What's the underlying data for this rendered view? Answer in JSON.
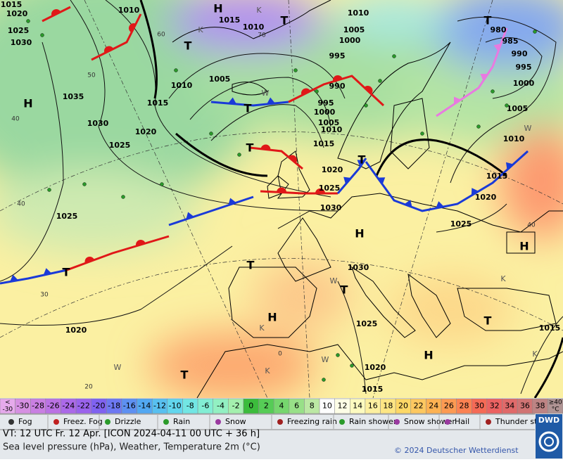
{
  "map": {
    "isobar_labels": [
      "1015",
      "1020",
      "1025",
      "1030",
      "1010",
      "1015",
      "1010",
      "1010",
      "1005",
      "1000",
      "995",
      "990",
      "1005",
      "1010",
      "1015",
      "1035",
      "1030",
      "1020",
      "1025",
      "995",
      "1000",
      "1005",
      "1010",
      "1015",
      "1020",
      "1025",
      "1030",
      "1025",
      "980",
      "985",
      "990",
      "995",
      "1000",
      "1005",
      "1010",
      "1015",
      "1020",
      "1025",
      "1030",
      "1025",
      "1020",
      "1015",
      "1015",
      "1020"
    ],
    "pressure_centers": [
      "H",
      "H",
      "H",
      "H",
      "H",
      "H",
      "T",
      "T",
      "T",
      "T",
      "T",
      "T",
      "T",
      "T",
      "T",
      "T",
      "T"
    ],
    "contour_labels": [
      "60",
      "50",
      "40",
      "40",
      "30",
      "20",
      "70",
      "40",
      "0"
    ],
    "weather_marks": [
      "K",
      "K",
      "W",
      "W",
      "W",
      "K",
      "W",
      "K",
      "K",
      "W",
      "K"
    ]
  },
  "legend": {
    "under_symbol": "<",
    "under_value": -30,
    "scale": [
      -30,
      -28,
      -26,
      -24,
      -22,
      -20,
      -18,
      -16,
      -14,
      -12,
      -10,
      -8,
      -6,
      -4,
      -2,
      0,
      2,
      4,
      6,
      8,
      10,
      12,
      14,
      16,
      18,
      20,
      22,
      24,
      26,
      28,
      30,
      32,
      34,
      36,
      38
    ],
    "colors": [
      "#d690e2",
      "#c97fe2",
      "#bb72e4",
      "#ab69e8",
      "#9a63ec",
      "#7f62f0",
      "#6d78f2",
      "#5d90f2",
      "#52a8f2",
      "#58c0f0",
      "#62d6ee",
      "#72e6e4",
      "#82eed4",
      "#92f0c2",
      "#a4f0ae",
      "#3cbc3c",
      "#56cc56",
      "#76d66e",
      "#98e088",
      "#bce8a4",
      "#fdfdfd",
      "#fdfde6",
      "#fdfbc0",
      "#fdf0a0",
      "#fde684",
      "#fdd866",
      "#fdc860",
      "#fdb252",
      "#fd9a52",
      "#fb8252",
      "#f56a56",
      "#ec6262",
      "#e06a6a",
      "#d07474",
      "#bd8484"
    ],
    "under_color": "#e6aaec",
    "over_label": "≥40",
    "over_unit": "°C",
    "over_color": "#b09494",
    "symbols": [
      "Fog",
      "Freez. Fog",
      "Drizzle",
      "Rain",
      "Snow",
      "Freezing rain",
      "Rain shower",
      "Snow shower",
      "Hail",
      "Thunder storm"
    ]
  },
  "footer": {
    "valid_time": "VT: 12 UTC Fr.  12 Apr. [ICON 2024-04-11  00 UTC + 36 h]",
    "description": "Sea level pressure (hPa), Weather, Temperature 2m (°C)",
    "copyright": "© 2024 Deutscher Wetterdienst",
    "logo": "DWD"
  }
}
